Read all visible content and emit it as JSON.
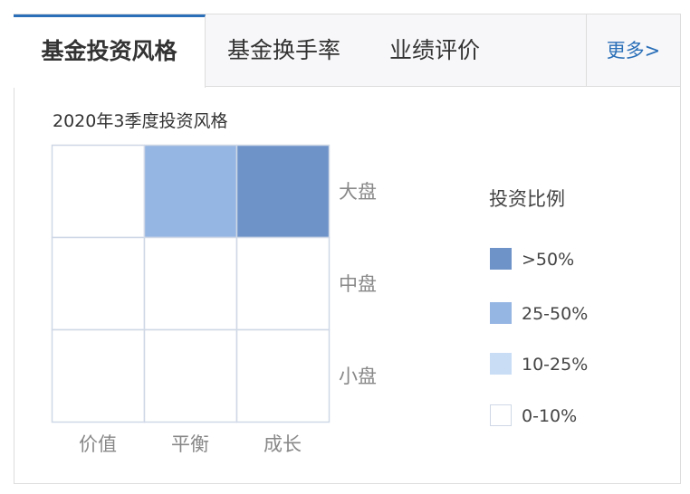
{
  "tabs": [
    {
      "label": "基金投资风格",
      "active": true
    },
    {
      "label": "基金换手率"
    },
    {
      "label": "业绩评价"
    }
  ],
  "more_label": "更多>",
  "subtitle": "2020年3季度投资风格",
  "accent": "#2a6fb8",
  "chart_data": {
    "type": "heatmap",
    "title": "2020年3季度投资风格",
    "x_categories": [
      "价值",
      "平衡",
      "成长"
    ],
    "y_categories": [
      "大盘",
      "中盘",
      "小盘"
    ],
    "cells": [
      [
        "0-10%",
        "25-50%",
        ">50%"
      ],
      [
        "0-10%",
        "0-10%",
        "0-10%"
      ],
      [
        "0-10%",
        "0-10%",
        "0-10%"
      ]
    ],
    "legend": {
      "title": "投资比例",
      "position": "right",
      "items": [
        {
          "label": ">50%",
          "color": "#6e93c9"
        },
        {
          "label": "25-50%",
          "color": "#95b5e2"
        },
        {
          "label": "10-25%",
          "color": "#c9ddf5"
        },
        {
          "label": "0-10%",
          "color": "#ffffff"
        }
      ]
    }
  }
}
